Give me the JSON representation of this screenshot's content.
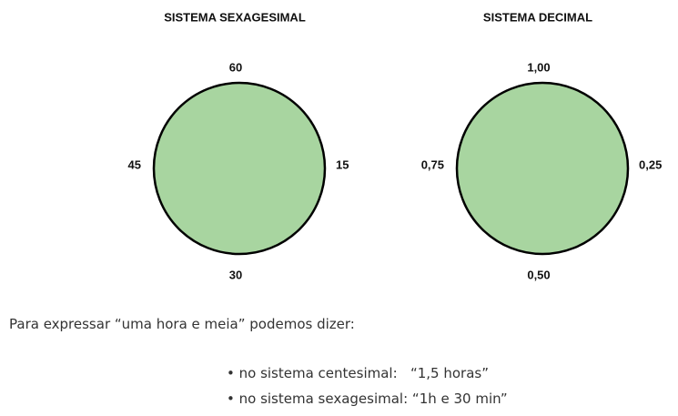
{
  "diagrams": [
    {
      "title": "SISTEMA SEXAGESIMAL",
      "labels": {
        "top": "60",
        "right": "15",
        "bottom": "30",
        "left": "45"
      }
    },
    {
      "title": "SISTEMA DECIMAL",
      "labels": {
        "top": "1,00",
        "right": "0,25",
        "bottom": "0,50",
        "left": "0,75"
      }
    }
  ],
  "text": {
    "intro": "Para expressar “uma hora e meia” podemos dizer:",
    "bullets": [
      "• no sistema centesimal:   “1,5 horas”",
      "• no sistema sexagesimal: “1h e 30 min”"
    ]
  }
}
